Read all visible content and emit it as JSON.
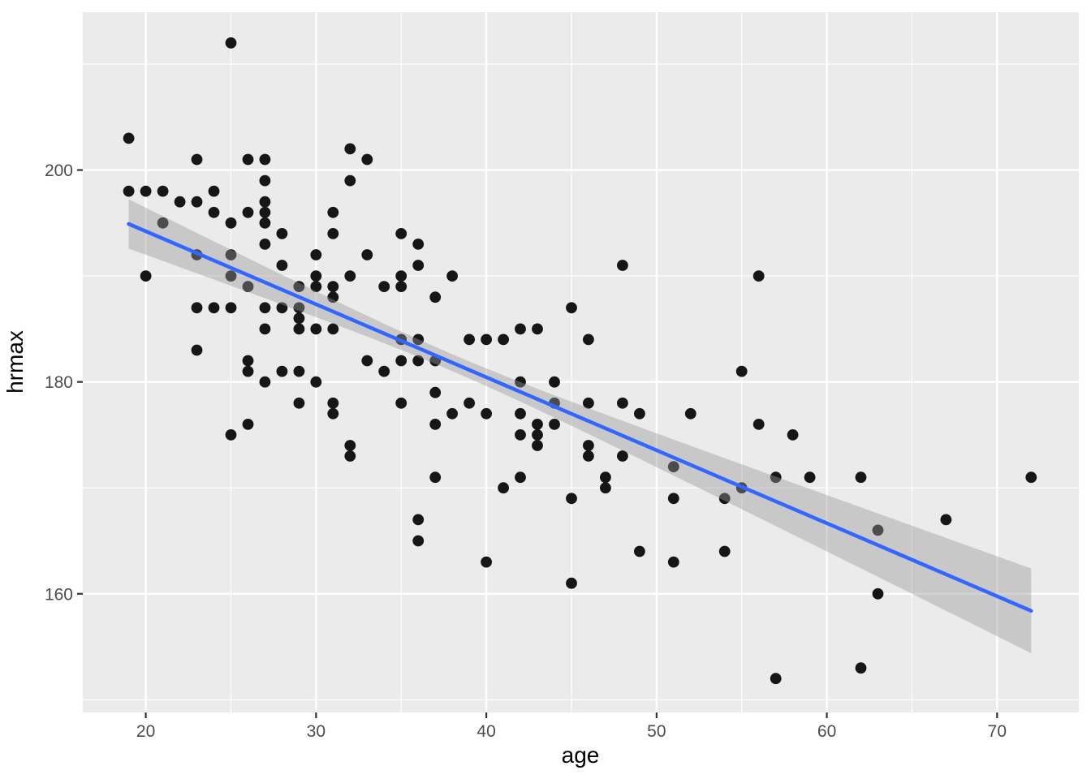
{
  "chart_data": {
    "type": "scatter",
    "title": "",
    "xlabel": "age",
    "ylabel": "hrmax",
    "xlim": [
      16.3,
      74.8
    ],
    "ylim": [
      148.8,
      214.9
    ],
    "x_major_ticks": [
      20,
      30,
      40,
      50,
      60,
      70
    ],
    "x_minor_ticks": [
      25,
      35,
      45,
      55,
      65
    ],
    "y_major_ticks": [
      160,
      180,
      200
    ],
    "y_minor_ticks": [
      150,
      170,
      190,
      210
    ],
    "grid": true,
    "legend": false,
    "colors": {
      "panel_bg": "#EBEBEB",
      "grid": "#FFFFFF",
      "point": "#161616",
      "smooth_line": "#3366FF",
      "ci_fill": "#999999",
      "ci_opacity": 0.42,
      "tick_mark": "#333333",
      "tick_label": "#4D4D4D",
      "axis_title": "#000000"
    },
    "points": [
      [
        19,
        203
      ],
      [
        19,
        198
      ],
      [
        20,
        198
      ],
      [
        20,
        190
      ],
      [
        21,
        198
      ],
      [
        21,
        195
      ],
      [
        22,
        197
      ],
      [
        23,
        201
      ],
      [
        23,
        197
      ],
      [
        23,
        192
      ],
      [
        23,
        187
      ],
      [
        23,
        183
      ],
      [
        24,
        198
      ],
      [
        24,
        196
      ],
      [
        24,
        187
      ],
      [
        25,
        212
      ],
      [
        25,
        195
      ],
      [
        25,
        192
      ],
      [
        25,
        190
      ],
      [
        25,
        187
      ],
      [
        25,
        175
      ],
      [
        26,
        201
      ],
      [
        26,
        196
      ],
      [
        26,
        189
      ],
      [
        26,
        182
      ],
      [
        26,
        181
      ],
      [
        26,
        176
      ],
      [
        27,
        201
      ],
      [
        27,
        199
      ],
      [
        27,
        197
      ],
      [
        27,
        196
      ],
      [
        27,
        195
      ],
      [
        27,
        193
      ],
      [
        27,
        187
      ],
      [
        27,
        185
      ],
      [
        27,
        180
      ],
      [
        28,
        194
      ],
      [
        28,
        191
      ],
      [
        28,
        187
      ],
      [
        28,
        181
      ],
      [
        29,
        189
      ],
      [
        29,
        187
      ],
      [
        29,
        186
      ],
      [
        29,
        185
      ],
      [
        29,
        181
      ],
      [
        29,
        178
      ],
      [
        30,
        192
      ],
      [
        30,
        190
      ],
      [
        30,
        189
      ],
      [
        30,
        185
      ],
      [
        30,
        180
      ],
      [
        31,
        196
      ],
      [
        31,
        194
      ],
      [
        31,
        189
      ],
      [
        31,
        188
      ],
      [
        31,
        185
      ],
      [
        31,
        178
      ],
      [
        31,
        177
      ],
      [
        32,
        202
      ],
      [
        32,
        199
      ],
      [
        32,
        190
      ],
      [
        32,
        174
      ],
      [
        32,
        173
      ],
      [
        33,
        201
      ],
      [
        33,
        192
      ],
      [
        33,
        182
      ],
      [
        34,
        189
      ],
      [
        34,
        181
      ],
      [
        35,
        194
      ],
      [
        35,
        190
      ],
      [
        35,
        189
      ],
      [
        35,
        184
      ],
      [
        35,
        182
      ],
      [
        35,
        178
      ],
      [
        36,
        193
      ],
      [
        36,
        191
      ],
      [
        36,
        184
      ],
      [
        36,
        182
      ],
      [
        36,
        167
      ],
      [
        36,
        165
      ],
      [
        37,
        188
      ],
      [
        37,
        182
      ],
      [
        37,
        179
      ],
      [
        37,
        176
      ],
      [
        37,
        171
      ],
      [
        38,
        190
      ],
      [
        38,
        177
      ],
      [
        39,
        184
      ],
      [
        39,
        178
      ],
      [
        40,
        184
      ],
      [
        40,
        177
      ],
      [
        40,
        163
      ],
      [
        41,
        184
      ],
      [
        41,
        170
      ],
      [
        42,
        185
      ],
      [
        42,
        180
      ],
      [
        42,
        177
      ],
      [
        42,
        175
      ],
      [
        42,
        171
      ],
      [
        43,
        185
      ],
      [
        43,
        176
      ],
      [
        43,
        175
      ],
      [
        43,
        174
      ],
      [
        44,
        180
      ],
      [
        44,
        178
      ],
      [
        44,
        176
      ],
      [
        45,
        187
      ],
      [
        45,
        169
      ],
      [
        45,
        161
      ],
      [
        46,
        184
      ],
      [
        46,
        178
      ],
      [
        46,
        174
      ],
      [
        46,
        173
      ],
      [
        47,
        171
      ],
      [
        47,
        170
      ],
      [
        48,
        191
      ],
      [
        48,
        178
      ],
      [
        48,
        173
      ],
      [
        49,
        177
      ],
      [
        49,
        164
      ],
      [
        51,
        172
      ],
      [
        51,
        169
      ],
      [
        51,
        163
      ],
      [
        52,
        177
      ],
      [
        54,
        169
      ],
      [
        54,
        164
      ],
      [
        55,
        181
      ],
      [
        55,
        170
      ],
      [
        56,
        190
      ],
      [
        56,
        176
      ],
      [
        57,
        171
      ],
      [
        57,
        152
      ],
      [
        58,
        175
      ],
      [
        59,
        171
      ],
      [
        62,
        171
      ],
      [
        62,
        153
      ],
      [
        63,
        166
      ],
      [
        63,
        160
      ],
      [
        67,
        167
      ],
      [
        72,
        171
      ]
    ],
    "smooth": {
      "method": "lm",
      "intercept": 208.0,
      "slope": -0.689,
      "x_start": 19,
      "x_end": 72,
      "ci": {
        "mean_x": 38,
        "half_width_min": 0.8,
        "spread_coef": 0.0133
      }
    }
  }
}
